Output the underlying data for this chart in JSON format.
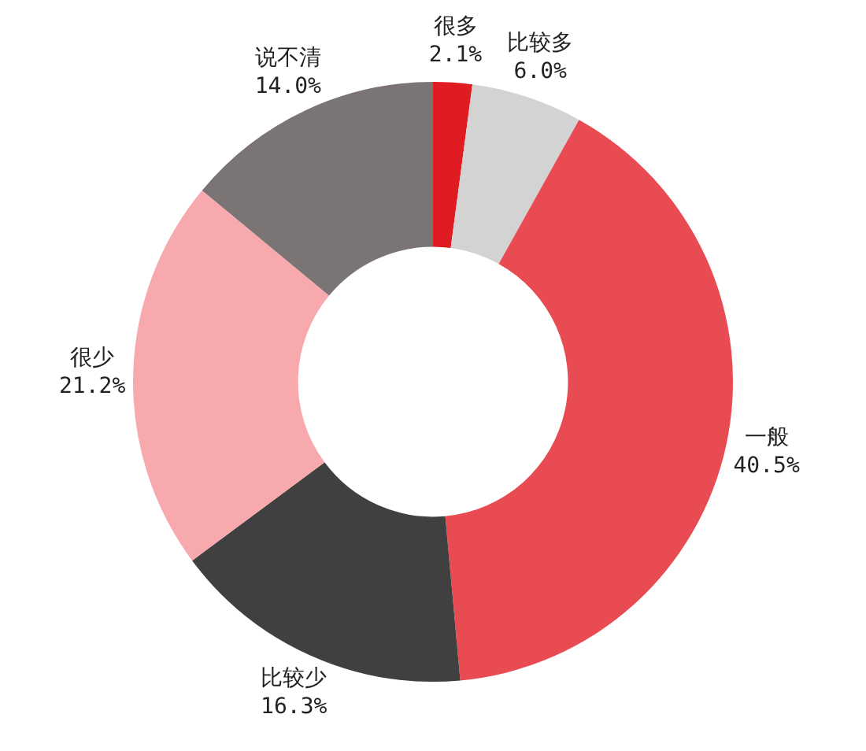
{
  "chart_data": {
    "type": "donut",
    "categories": [
      "很多",
      "比较多",
      "一般",
      "比较少",
      "很少",
      "说不清"
    ],
    "values": [
      2.1,
      6.0,
      40.5,
      16.3,
      21.2,
      14.0
    ],
    "value_labels": [
      "2.1%",
      "6.0%",
      "40.5%",
      "16.3%",
      "21.2%",
      "14.0%"
    ],
    "colors": [
      "#e01b22",
      "#d3d3d3",
      "#e94b53",
      "#404040",
      "#f8a9ae",
      "#7a7574"
    ],
    "legend": false
  }
}
